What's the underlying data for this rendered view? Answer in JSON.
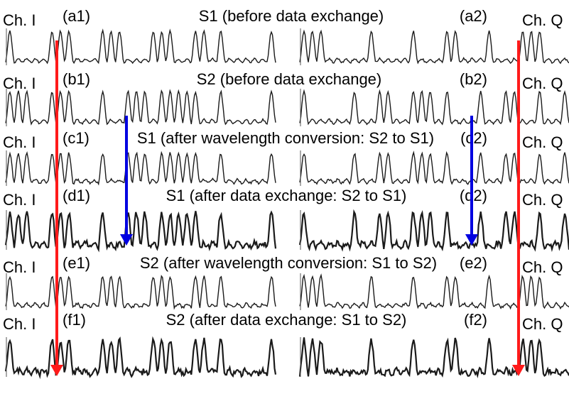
{
  "colors": {
    "trace": "#1a1a1a",
    "arrow_ch_i": "#ff1a1a",
    "arrow_s_exchange": "#0000e0",
    "background": "#ffffff"
  },
  "rows": [
    {
      "left_id": "(a1)",
      "right_id": "(a2)",
      "caption": "S1 (before data exchange)"
    },
    {
      "left_id": "(b1)",
      "right_id": "(b2)",
      "caption": "S2 (before data exchange)"
    },
    {
      "left_id": "(c1)",
      "right_id": "(c2)",
      "caption": "S1 (after wavelength conversion: S2 to S1)"
    },
    {
      "left_id": "(d1)",
      "right_id": "(d2)",
      "caption": "S1 (after data exchange: S2 to S1)"
    },
    {
      "left_id": "(e1)",
      "right_id": "(e2)",
      "caption": "S2 (after wavelength conversion: S1 to S2)"
    },
    {
      "left_id": "(f1)",
      "right_id": "(f2)",
      "caption": "S2 (after data exchange: S1 to S2)"
    }
  ],
  "channel_labels": {
    "left": "Ch. I",
    "right": "Ch. Q"
  },
  "chart_data": {
    "type": "line",
    "description_source": "oscilloscope waveform panels (6 rows x 2 channels)",
    "bit_patterns": {
      "S1_ch_I": [
        1,
        0,
        0,
        0,
        0,
        1,
        1,
        1,
        0,
        0,
        0,
        1,
        1,
        1,
        0,
        0,
        0,
        1,
        1,
        1,
        0,
        0,
        1,
        1,
        0,
        1,
        0,
        0,
        0,
        0,
        0,
        1
      ],
      "S1_ch_Q": [
        1,
        1,
        1,
        0,
        0,
        0,
        0,
        0,
        1,
        0,
        0,
        0,
        0,
        1,
        0,
        0,
        0,
        1,
        1,
        0,
        0,
        0,
        1,
        0,
        0,
        0,
        1,
        1,
        1,
        0,
        0,
        0
      ],
      "S2_ch_I": [
        1,
        1,
        1,
        0,
        0,
        1,
        1,
        1,
        0,
        0,
        0,
        1,
        0,
        0,
        1,
        1,
        1,
        0,
        1,
        1,
        1,
        1,
        1,
        0,
        0,
        1,
        0,
        0,
        0,
        0,
        0,
        1
      ],
      "S2_ch_Q": [
        1,
        0,
        0,
        0,
        0,
        0,
        1,
        0,
        0,
        1,
        1,
        0,
        0,
        1,
        1,
        1,
        0,
        1,
        0,
        0,
        0,
        1,
        0,
        0,
        1,
        1,
        0,
        0,
        1,
        0,
        0,
        1
      ]
    },
    "panels": [
      {
        "row": 0,
        "channel": "I",
        "pattern": "S1_ch_I",
        "noise": 0.03
      },
      {
        "row": 0,
        "channel": "Q",
        "pattern": "S1_ch_Q",
        "noise": 0.03
      },
      {
        "row": 1,
        "channel": "I",
        "pattern": "S2_ch_I",
        "noise": 0.03
      },
      {
        "row": 1,
        "channel": "Q",
        "pattern": "S2_ch_Q",
        "noise": 0.03
      },
      {
        "row": 2,
        "channel": "I",
        "pattern": "S2_ch_I",
        "noise": 0.04
      },
      {
        "row": 2,
        "channel": "Q",
        "pattern": "S2_ch_Q",
        "noise": 0.04
      },
      {
        "row": 3,
        "channel": "I",
        "pattern": "S2_ch_I",
        "noise": 0.08
      },
      {
        "row": 3,
        "channel": "Q",
        "pattern": "S2_ch_Q",
        "noise": 0.08
      },
      {
        "row": 4,
        "channel": "I",
        "pattern": "S1_ch_I",
        "noise": 0.04
      },
      {
        "row": 4,
        "channel": "Q",
        "pattern": "S1_ch_Q",
        "noise": 0.04
      },
      {
        "row": 5,
        "channel": "I",
        "pattern": "S1_ch_I",
        "noise": 0.08
      },
      {
        "row": 5,
        "channel": "Q",
        "pattern": "S1_ch_Q",
        "noise": 0.08
      }
    ],
    "arrows": [
      {
        "color_key": "arrow_ch_i",
        "from_row": 0,
        "to_row": 5,
        "side": "left"
      },
      {
        "color_key": "arrow_ch_i",
        "from_row": 0,
        "to_row": 5,
        "side": "right"
      },
      {
        "color_key": "arrow_s_exchange",
        "from_row": 1,
        "to_row": 3,
        "side": "left"
      },
      {
        "color_key": "arrow_s_exchange",
        "from_row": 1,
        "to_row": 3,
        "side": "right"
      }
    ]
  }
}
